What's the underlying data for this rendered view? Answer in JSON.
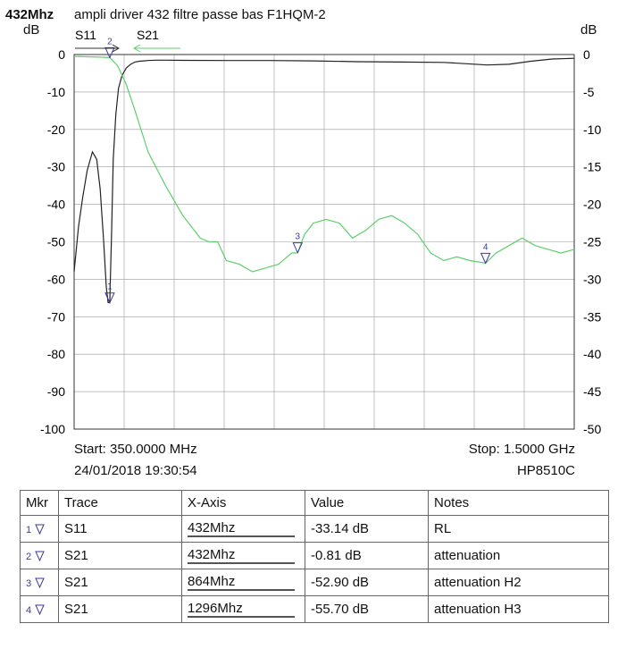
{
  "header": {
    "freq_label": "432Mhz",
    "title": "ampli driver 432 filtre passe bas F1HQM-2",
    "left_unit": "dB",
    "right_unit": "dB",
    "trace1": "S11",
    "trace2": "S21"
  },
  "footer": {
    "start": "Start: 350.0000 MHz",
    "stop": "Stop: 1.5000 GHz",
    "datetime": "24/01/2018 19:30:54",
    "instrument": "HP8510C"
  },
  "chart_data": {
    "type": "line",
    "x_range_mhz": [
      350,
      1500
    ],
    "left_axis": {
      "min": -100,
      "max": 0,
      "ticks": [
        0,
        -10,
        -20,
        -30,
        -40,
        -50,
        -60,
        -70,
        -80,
        -90,
        -100
      ]
    },
    "right_axis": {
      "min": -50,
      "max": 0,
      "ticks": [
        0,
        -5,
        -10,
        -15,
        -20,
        -25,
        -30,
        -35,
        -40,
        -45,
        -50
      ]
    },
    "series": [
      {
        "name": "S11",
        "color": "#222222",
        "axis": "right",
        "x": [
          350,
          360,
          370,
          380,
          392,
          402,
          410,
          418,
          424,
          428,
          432,
          436,
          440,
          446,
          452,
          460,
          470,
          480,
          490,
          500,
          510,
          520,
          540,
          560,
          600,
          700,
          800,
          900,
          1000,
          1100,
          1200,
          1300,
          1350,
          1400,
          1450,
          1500
        ],
        "y": [
          -29,
          -23,
          -19,
          -15.5,
          -13,
          -14,
          -18,
          -25,
          -31,
          -33.1,
          -33.14,
          -24,
          -14,
          -8,
          -4.5,
          -2.8,
          -1.8,
          -1.3,
          -1.0,
          -0.9,
          -0.85,
          -0.8,
          -0.75,
          -0.75,
          -0.78,
          -0.8,
          -0.8,
          -0.85,
          -0.95,
          -1.0,
          -1.05,
          -1.4,
          -1.3,
          -0.9,
          -0.6,
          -0.5
        ]
      },
      {
        "name": "S21",
        "color": "#5fce6d",
        "axis": "left",
        "x": [
          350,
          380,
          410,
          432,
          450,
          470,
          490,
          520,
          560,
          600,
          640,
          660,
          680,
          700,
          730,
          760,
          790,
          820,
          850,
          864,
          880,
          900,
          930,
          960,
          990,
          1020,
          1050,
          1080,
          1110,
          1140,
          1170,
          1200,
          1230,
          1260,
          1296,
          1320,
          1350,
          1380,
          1410,
          1440,
          1470,
          1500
        ],
        "y": [
          -0.5,
          -0.6,
          -0.7,
          -0.81,
          -3,
          -8,
          -15,
          -26,
          -35,
          -43,
          -49,
          -50,
          -50,
          -55,
          -56,
          -58,
          -57,
          -56,
          -53,
          -52.9,
          -48,
          -45,
          -44,
          -45,
          -49,
          -47,
          -44,
          -43,
          -45,
          -48,
          -53,
          -55,
          -54,
          -55,
          -55.7,
          -53,
          -51,
          -49,
          -51,
          -52,
          -53,
          -52
        ]
      }
    ],
    "markers": [
      {
        "num": 1,
        "trace": "S11",
        "x_label": "432Mhz",
        "value": "-33.14 dB",
        "notes": "RL"
      },
      {
        "num": 2,
        "trace": "S21",
        "x_label": "432Mhz",
        "value": "-0.81 dB",
        "notes": "attenuation"
      },
      {
        "num": 3,
        "trace": "S21",
        "x_label": "864Mhz",
        "value": "-52.90 dB",
        "notes": "attenuation H2"
      },
      {
        "num": 4,
        "trace": "S21",
        "x_label": "1296Mhz",
        "value": "-55.70 dB",
        "notes": "attenuation H3"
      }
    ],
    "grid": true,
    "grid_columns": 10
  },
  "table": {
    "headers": [
      "Mkr",
      "Trace",
      "X-Axis",
      "Value",
      "Notes"
    ]
  },
  "colors": {
    "s11": "#222222",
    "s21": "#5fce6d",
    "grid": "#9a9a9a",
    "marker": "#3a3a9a"
  }
}
